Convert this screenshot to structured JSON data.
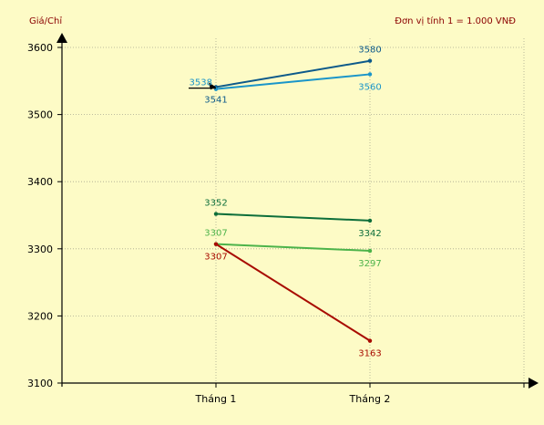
{
  "chart_data": {
    "type": "line",
    "ylabel": "Giá/Chỉ",
    "unit_note": "Đơn vị tính 1 = 1.000 VNĐ",
    "categories": [
      "Tháng 1",
      "Tháng 2"
    ],
    "y_ticks": [
      3100,
      3200,
      3300,
      3400,
      3500,
      3600
    ],
    "ylim": [
      3100,
      3600
    ],
    "grid": true,
    "series": [
      {
        "color": "#0d5a8a",
        "values": [
          3541,
          3580
        ]
      },
      {
        "color": "#1a95c9",
        "values": [
          3538,
          3560
        ]
      },
      {
        "color": "#0d6e3a",
        "values": [
          3352,
          3342
        ]
      },
      {
        "color": "#4cb34a",
        "values": [
          3307,
          3297
        ]
      },
      {
        "color": "#a80b00",
        "values": [
          3307,
          3163
        ]
      }
    ],
    "data_labels": [
      {
        "text": "3580",
        "series": 0,
        "point": 1,
        "pos": "above"
      },
      {
        "text": "3541",
        "series": 0,
        "point": 0,
        "pos": "below"
      },
      {
        "text": "3538",
        "series": 1,
        "point": 0,
        "pos": "left"
      },
      {
        "text": "3560",
        "series": 1,
        "point": 1,
        "pos": "below"
      },
      {
        "text": "3352",
        "series": 2,
        "point": 0,
        "pos": "above"
      },
      {
        "text": "3342",
        "series": 2,
        "point": 1,
        "pos": "below"
      },
      {
        "text": "3307",
        "series": 3,
        "point": 0,
        "pos": "above"
      },
      {
        "text": "3297",
        "series": 3,
        "point": 1,
        "pos": "below"
      },
      {
        "text": "3307",
        "series": 4,
        "point": 0,
        "pos": "below"
      },
      {
        "text": "3163",
        "series": 4,
        "point": 1,
        "pos": "below"
      }
    ]
  }
}
